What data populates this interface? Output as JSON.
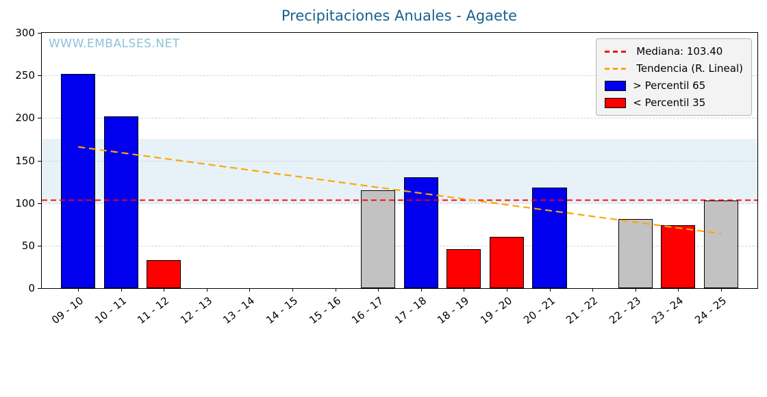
{
  "title": "Precipitaciones Anuales - Agaete",
  "watermark": "WWW.EMBALSES.NET",
  "chart_data": {
    "type": "bar",
    "title": "Precipitaciones Anuales - Agaete",
    "categories": [
      "09 - 10",
      "10 - 11",
      "11 - 12",
      "12 - 13",
      "13 - 14",
      "14 - 15",
      "15 - 16",
      "16 - 17",
      "17 - 18",
      "18 - 19",
      "19 - 20",
      "20 - 21",
      "21 - 22",
      "22 - 23",
      "23 - 24",
      "24 - 25"
    ],
    "values": [
      252,
      202,
      33,
      0,
      0,
      0,
      0,
      115,
      130,
      46,
      60,
      118,
      0,
      81,
      74,
      103
    ],
    "bar_colors": [
      "p65",
      "p65",
      "p35",
      "none",
      "none",
      "none",
      "none",
      "mid",
      "p65",
      "p35",
      "p35",
      "p65",
      "none",
      "mid",
      "p35",
      "mid"
    ],
    "color_map": {
      "p65": "#0000ee",
      "p35": "#ff0000",
      "mid": "#c2c2c2"
    },
    "ylim": [
      0,
      300
    ],
    "yticks": [
      0,
      50,
      100,
      150,
      200,
      250,
      300
    ],
    "grid": true,
    "median": 103.4,
    "median_color": "#ff0000",
    "trend": {
      "start": 166,
      "end": 64,
      "color": "#ffa500"
    },
    "band": {
      "from": 100,
      "to": 175,
      "color": "#e6f2f8"
    },
    "legend_position": "upper right",
    "legend": [
      {
        "label": "Mediana: 103.40",
        "swatch": "line",
        "color": "#ff0000"
      },
      {
        "label": "Tendencia (R. Lineal)",
        "swatch": "line",
        "color": "#ffa500"
      },
      {
        "label": "> Percentil 65",
        "swatch": "box",
        "color": "#0000ee"
      },
      {
        "label": "< Percentil 35",
        "swatch": "box",
        "color": "#ff0000"
      }
    ]
  }
}
